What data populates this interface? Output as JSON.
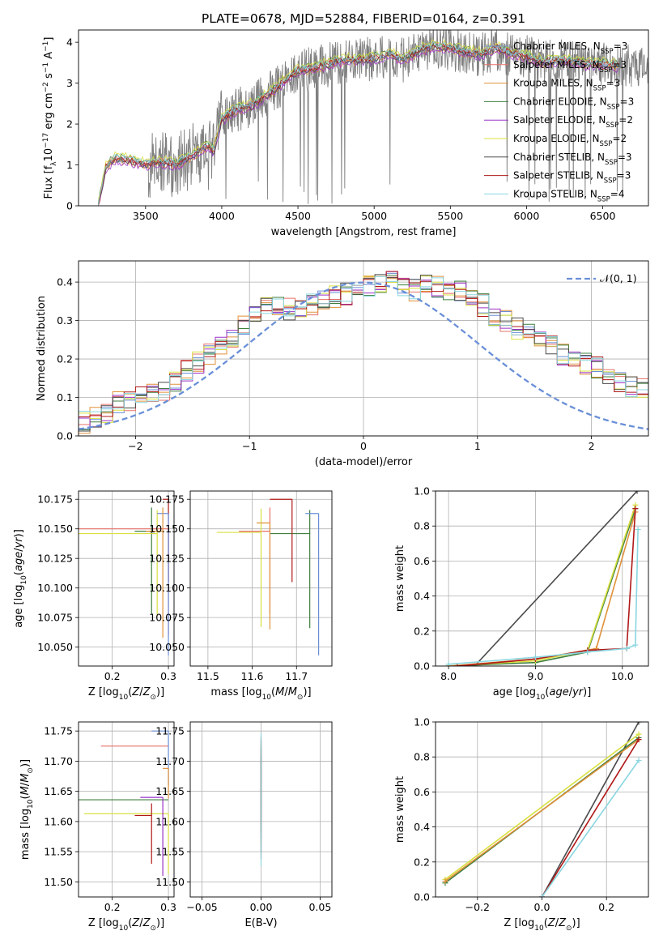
{
  "figure": {
    "title": "PLATE=0678, MJD=52884, FIBERID=0164, z=0.391"
  },
  "colors": {
    "chabrier_miles": "#6a8fd8",
    "salpeter_miles": "#e8706a",
    "kroupa_miles": "#e0913a",
    "chabrier_elodie": "#3f7f3f",
    "salpeter_elodie": "#9b30c8",
    "kroupa_elodie": "#d8e040",
    "chabrier_stelib": "#4a4a4a",
    "salpeter_stelib": "#b01818",
    "kroupa_stelib": "#8ad6e0",
    "data": "#7f7f7f",
    "normal": "#6a8fd8"
  },
  "legend_spectrum": [
    {
      "name": "Chabrier MILES, N",
      "sub": "SSP",
      "tail": "=3",
      "color": "#6a8fd8"
    },
    {
      "name": "Salpeter MILES, N",
      "sub": "SSP",
      "tail": "=3",
      "color": "#e8706a"
    },
    {
      "name": "Kroupa MILES, N",
      "sub": "SSP",
      "tail": "=3",
      "color": "#e0913a"
    },
    {
      "name": "Chabrier ELODIE, N",
      "sub": "SSP",
      "tail": "=3",
      "color": "#3f7f3f"
    },
    {
      "name": "Salpeter ELODIE, N",
      "sub": "SSP",
      "tail": "=2",
      "color": "#9b30c8"
    },
    {
      "name": "Kroupa ELODIE, N",
      "sub": "SSP",
      "tail": "=2",
      "color": "#d8e040"
    },
    {
      "name": "Chabrier STELIB, N",
      "sub": "SSP",
      "tail": "=3",
      "color": "#4a4a4a"
    },
    {
      "name": "Salpeter STELIB, N",
      "sub": "SSP",
      "tail": "=3",
      "color": "#b01818"
    },
    {
      "name": "Kroupa STELIB, N",
      "sub": "SSP",
      "tail": "=4",
      "color": "#8ad6e0"
    }
  ],
  "legend_resid": {
    "label": "𝒩(0, 1)"
  },
  "chart_data": [
    {
      "id": "spectrum",
      "type": "line",
      "xlabel": "wavelength [Angstrom, rest frame]",
      "ylabel_parts": [
        "Flux [f",
        "λ",
        "10",
        "−17",
        " erg cm",
        "−2",
        " s",
        "−1",
        " A",
        "−1",
        "]"
      ],
      "xlim": [
        3060,
        6800
      ],
      "ylim": [
        0,
        4.3
      ],
      "xticks": [
        3500,
        4000,
        4500,
        5000,
        5500,
        6000,
        6500
      ],
      "yticks": [
        0,
        1,
        2,
        3,
        4
      ],
      "grid": false,
      "model_continuum": [
        [
          3190,
          0
        ],
        [
          3240,
          0.95
        ],
        [
          3300,
          1.15
        ],
        [
          3400,
          1.1
        ],
        [
          3500,
          1.0
        ],
        [
          3600,
          1.05
        ],
        [
          3700,
          1.0
        ],
        [
          3800,
          1.2
        ],
        [
          3900,
          1.45
        ],
        [
          3950,
          1.35
        ],
        [
          4000,
          2.1
        ],
        [
          4100,
          2.35
        ],
        [
          4200,
          2.45
        ],
        [
          4300,
          2.7
        ],
        [
          4400,
          3.0
        ],
        [
          4500,
          3.3
        ],
        [
          4600,
          3.35
        ],
        [
          4700,
          3.45
        ],
        [
          4800,
          3.55
        ],
        [
          4900,
          3.55
        ],
        [
          5000,
          3.6
        ],
        [
          5100,
          3.7
        ],
        [
          5200,
          3.55
        ],
        [
          5300,
          3.8
        ],
        [
          5400,
          3.9
        ],
        [
          5500,
          3.85
        ],
        [
          5600,
          3.75
        ],
        [
          5700,
          3.7
        ],
        [
          5800,
          3.85
        ],
        [
          5900,
          3.7
        ],
        [
          6000,
          3.65
        ],
        [
          6100,
          3.5
        ],
        [
          6200,
          3.55
        ],
        [
          6300,
          3.5
        ],
        [
          6400,
          3.45
        ],
        [
          6500,
          3.45
        ],
        [
          6600,
          3.4
        ]
      ],
      "data_start": 3520,
      "model_offsets": [
        0.0,
        0.05,
        -0.05,
        0.08,
        -0.08,
        0.12,
        -0.02,
        0.03,
        0.06
      ]
    },
    {
      "id": "residuals",
      "type": "line",
      "xlabel": "(data-model)/error",
      "ylabel": "Normed distribution",
      "xlim": [
        -2.5,
        2.5
      ],
      "ylim": [
        0,
        0.455
      ],
      "xticks": [
        -2,
        -1,
        0,
        1,
        2
      ],
      "yticks": [
        0.0,
        0.1,
        0.2,
        0.3,
        0.4
      ],
      "grid": true,
      "bin_width": 0.1,
      "hist_values": [
        0.02,
        0.018,
        0.022,
        0.025,
        0.03,
        0.035,
        0.045,
        0.06,
        0.085,
        0.09,
        0.1,
        0.11,
        0.12,
        0.14,
        0.17,
        0.19,
        0.21,
        0.23,
        0.26,
        0.29,
        0.31,
        0.33,
        0.34,
        0.33,
        0.33,
        0.34,
        0.35,
        0.36,
        0.37,
        0.38,
        0.39,
        0.4,
        0.4,
        0.39,
        0.38,
        0.4,
        0.39,
        0.37,
        0.38,
        0.35,
        0.34,
        0.3,
        0.3,
        0.28,
        0.27,
        0.25,
        0.23,
        0.21,
        0.2,
        0.19,
        0.18,
        0.16,
        0.14,
        0.13,
        0.12,
        0.1,
        0.09,
        0.07,
        0.05,
        0.04,
        0.04,
        0.035
      ]
    },
    {
      "id": "age_vs_z",
      "type": "scatter",
      "xlabel": "Z [log10(Z/Z⊙)]",
      "ylabel": "age [log10(age/yr)]",
      "xlim": [
        0.14,
        0.31
      ],
      "ylim": [
        10.034,
        10.182
      ],
      "xticks": [
        0.2,
        0.3
      ],
      "yticks": [
        10.05,
        10.075,
        10.1,
        10.125,
        10.15,
        10.175
      ],
      "grid": true,
      "points": [
        {
          "x": 0.3,
          "y": 10.15,
          "xerr": 0.16,
          "yerr_lo": 0.09,
          "yerr_hi": 0.0
        },
        {
          "x": 0.27,
          "y": 10.148,
          "xerr": 0.03,
          "yerr_lo": 0.07,
          "yerr_hi": 0.02
        },
        {
          "x": 0.28,
          "y": 10.146,
          "xerr": 0.14,
          "yerr_lo": 0.07,
          "yerr_hi": 0.02
        },
        {
          "x": 0.3,
          "y": 10.175,
          "xerr": 0.01,
          "yerr_lo": 0.07,
          "yerr_hi": 0.0
        },
        {
          "x": 0.3,
          "y": 10.163,
          "xerr": 0.02,
          "yerr_lo": 0.12,
          "yerr_hi": 0.0
        },
        {
          "x": 0.29,
          "y": 10.148,
          "xerr": 0.03,
          "yerr_lo": 0.09,
          "yerr_hi": 0.02
        }
      ]
    },
    {
      "id": "age_vs_mass",
      "type": "scatter",
      "xlabel": "mass [log10(M/M⊙)]",
      "xlim": [
        11.46,
        11.78
      ],
      "ylim": [
        10.034,
        10.182
      ],
      "xticks": [
        11.5,
        11.6,
        11.7
      ],
      "yticks": [
        10.05,
        10.075,
        10.1,
        10.125,
        10.15,
        10.175
      ],
      "grid": true,
      "points": [
        {
          "x": 11.64,
          "y": 10.148,
          "xerr": 0.07,
          "yerr_lo": 0.07,
          "yerr_hi": 0.02
        },
        {
          "x": 11.73,
          "y": 10.146,
          "xerr": 0.09,
          "yerr_lo": 0.08,
          "yerr_hi": 0.02
        },
        {
          "x": 11.62,
          "y": 10.147,
          "xerr": 0.1,
          "yerr_lo": 0.08,
          "yerr_hi": 0.02
        },
        {
          "x": 11.69,
          "y": 10.175,
          "xerr": 0.05,
          "yerr_lo": 0.07,
          "yerr_hi": 0.0
        },
        {
          "x": 11.75,
          "y": 10.163,
          "xerr": 0.03,
          "yerr_lo": 0.12,
          "yerr_hi": 0.0
        },
        {
          "x": 11.64,
          "y": 10.155,
          "xerr": 0.03,
          "yerr_lo": 0.09,
          "yerr_hi": 0.0
        }
      ]
    },
    {
      "id": "weight_vs_age",
      "type": "line",
      "xlabel": "age [log10(age/yr)]",
      "ylabel": "mass weight",
      "xlim": [
        7.85,
        10.3
      ],
      "ylim": [
        0,
        1.0
      ],
      "xticks": [
        8.0,
        9.0,
        10.0
      ],
      "yticks": [
        0.0,
        0.2,
        0.4,
        0.6,
        0.8,
        1.0
      ],
      "grid": true,
      "series": [
        {
          "color": "#4a4a4a",
          "points": [
            [
              8.3,
              0.0
            ],
            [
              10.17,
              1.0
            ]
          ]
        },
        {
          "color": "#3f7f3f",
          "points": [
            [
              8.0,
              0.0
            ],
            [
              9.0,
              0.02
            ],
            [
              9.6,
              0.08
            ],
            [
              10.15,
              0.9
            ]
          ]
        },
        {
          "color": "#d8e040",
          "points": [
            [
              8.0,
              0.0
            ],
            [
              9.0,
              0.03
            ],
            [
              9.6,
              0.09
            ],
            [
              10.15,
              0.92
            ]
          ]
        },
        {
          "color": "#e0913a",
          "points": [
            [
              8.0,
              0.0
            ],
            [
              9.0,
              0.04
            ],
            [
              9.7,
              0.1
            ],
            [
              10.15,
              0.88
            ]
          ]
        },
        {
          "color": "#b01818",
          "points": [
            [
              8.1,
              0.0
            ],
            [
              9.0,
              0.04
            ],
            [
              9.6,
              0.09
            ],
            [
              10.05,
              0.1
            ],
            [
              10.15,
              0.9
            ]
          ]
        },
        {
          "color": "#8ad6e0",
          "points": [
            [
              8.0,
              0.01
            ],
            [
              9.0,
              0.05
            ],
            [
              9.6,
              0.08
            ],
            [
              10.05,
              0.1
            ],
            [
              10.15,
              0.12
            ],
            [
              10.18,
              0.78
            ]
          ]
        }
      ]
    },
    {
      "id": "mass_vs_z",
      "type": "scatter",
      "xlabel": "Z [log10(Z/Z⊙)]",
      "ylabel": "mass [log10(M/M⊙)]",
      "xlim": [
        0.14,
        0.31
      ],
      "ylim": [
        11.475,
        11.765
      ],
      "xticks": [
        0.2,
        0.3
      ],
      "yticks": [
        11.5,
        11.55,
        11.6,
        11.65,
        11.7,
        11.75
      ],
      "grid": true,
      "points": [
        {
          "x": 0.3,
          "y": 11.725,
          "xerr": 0.12,
          "yerr_lo": 0.0,
          "yerr_hi": 0.0
        },
        {
          "x": 0.3,
          "y": 11.636,
          "xerr": 0.16,
          "yerr_lo": 0.0,
          "yerr_hi": 0.0
        },
        {
          "x": 0.3,
          "y": 11.613,
          "xerr": 0.15,
          "yerr_lo": 0.1,
          "yerr_hi": 0.0
        },
        {
          "x": 0.27,
          "y": 11.61,
          "xerr": 0.03,
          "yerr_lo": 0.08,
          "yerr_hi": 0.02
        },
        {
          "x": 0.3,
          "y": 11.75,
          "xerr": 0.03,
          "yerr_lo": 0.09,
          "yerr_hi": 0.0
        },
        {
          "x": 0.3,
          "y": 11.688,
          "xerr": 0.01,
          "yerr_lo": 0.05,
          "yerr_hi": 0.0
        },
        {
          "x": 0.29,
          "y": 11.64,
          "xerr": 0.04,
          "yerr_lo": 0.13,
          "yerr_hi": 0.0
        }
      ]
    },
    {
      "id": "mass_vs_ebv",
      "type": "scatter",
      "xlabel": "E(B-V)",
      "xlim": [
        -0.06,
        0.06
      ],
      "ylim": [
        11.475,
        11.765
      ],
      "xticks": [
        -0.05,
        0.0,
        0.05
      ],
      "yticks": [
        11.5,
        11.55,
        11.6,
        11.65,
        11.7,
        11.75
      ],
      "grid": true,
      "points": [
        {
          "x": 0.0,
          "y": 11.68,
          "yerr_lo": 0.16,
          "yerr_hi": 0.07
        }
      ]
    },
    {
      "id": "weight_vs_z",
      "type": "line",
      "xlabel": "Z [log10(Z/Z⊙)]",
      "ylabel": "mass weight",
      "xlim": [
        -0.33,
        0.33
      ],
      "ylim": [
        0,
        1.0
      ],
      "xticks": [
        -0.2,
        0.0,
        0.2
      ],
      "yticks": [
        0.0,
        0.2,
        0.4,
        0.6,
        0.8,
        1.0
      ],
      "grid": true,
      "series": [
        {
          "color": "#4a4a4a",
          "points": [
            [
              0.0,
              0.0
            ],
            [
              0.3,
              1.0
            ]
          ]
        },
        {
          "color": "#3f7f3f",
          "points": [
            [
              -0.3,
              0.08
            ],
            [
              0.3,
              0.91
            ]
          ]
        },
        {
          "color": "#d8e040",
          "points": [
            [
              -0.3,
              0.1
            ],
            [
              0.3,
              0.93
            ]
          ]
        },
        {
          "color": "#e0913a",
          "points": [
            [
              -0.3,
              0.09
            ],
            [
              0.3,
              0.9
            ]
          ]
        },
        {
          "color": "#b01818",
          "points": [
            [
              0.0,
              0.0
            ],
            [
              0.3,
              0.9
            ]
          ]
        },
        {
          "color": "#8ad6e0",
          "points": [
            [
              0.0,
              0.0
            ],
            [
              0.3,
              0.78
            ]
          ]
        }
      ]
    }
  ]
}
